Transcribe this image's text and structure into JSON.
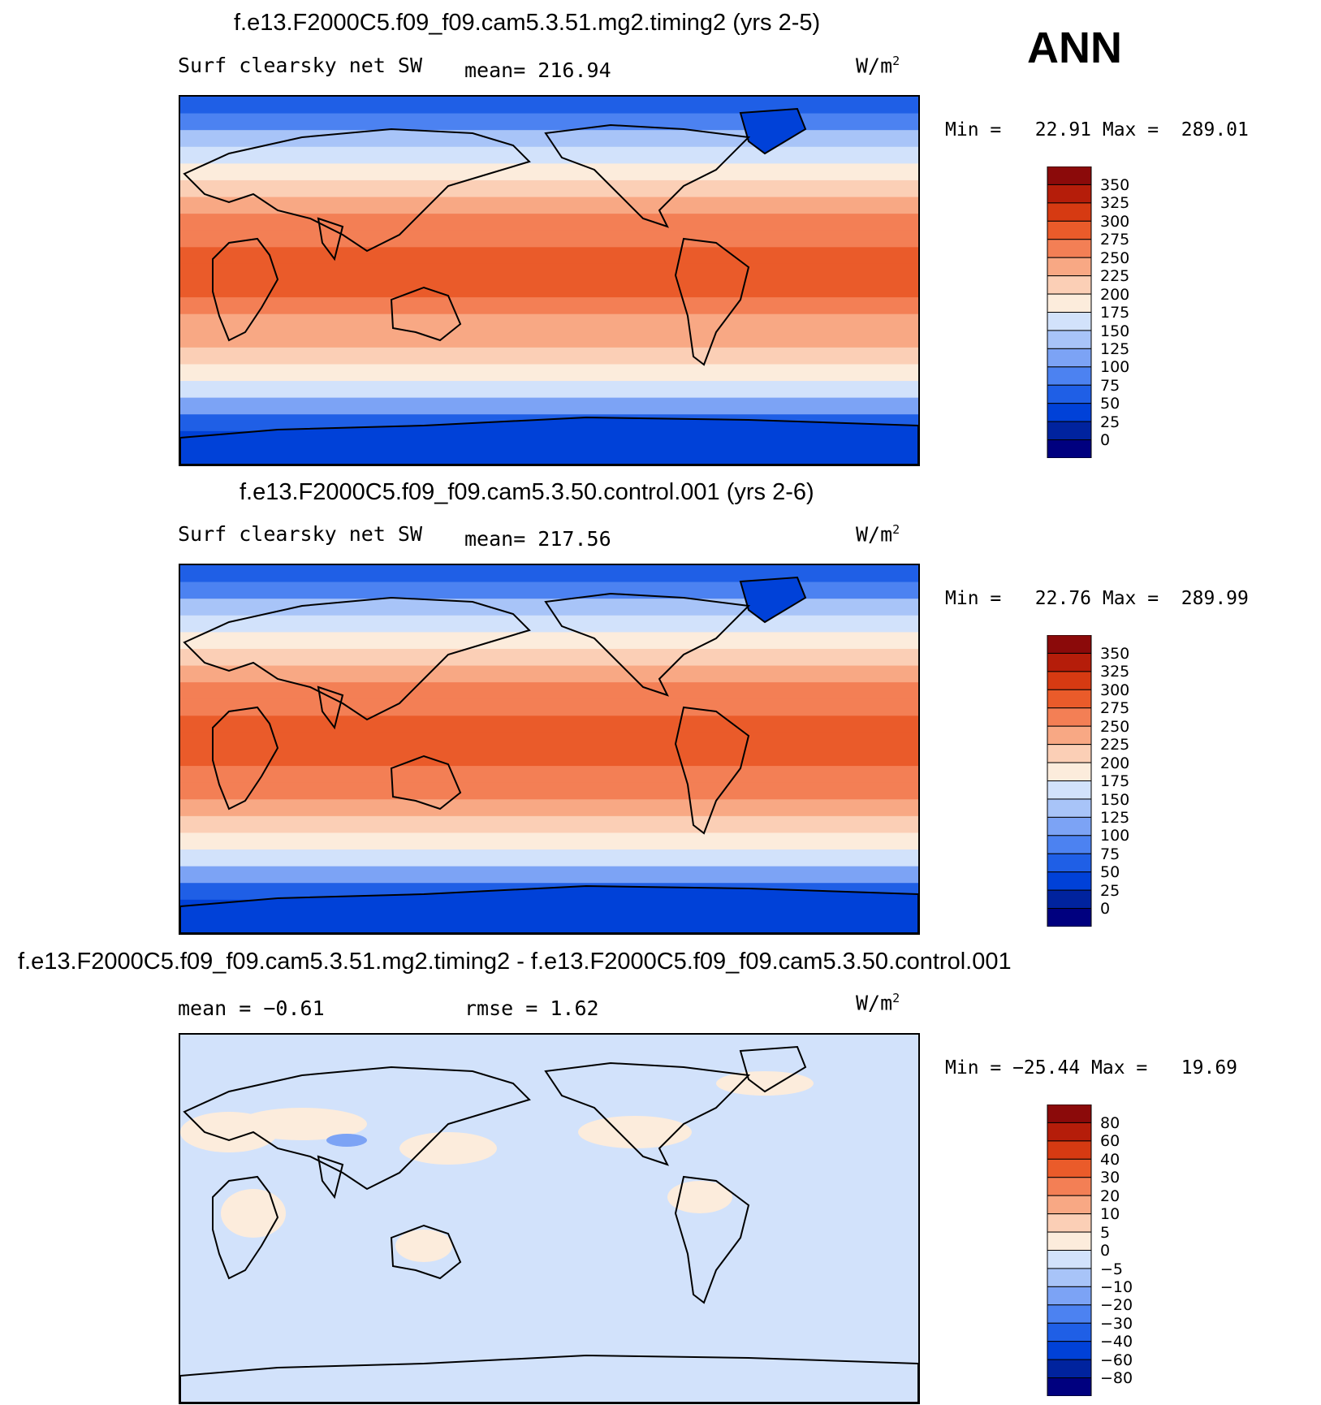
{
  "season": "ANN",
  "colors": {
    "abs_scale": [
      "#00007f",
      "#00239e",
      "#0041d8",
      "#1f5fe6",
      "#4c82f1",
      "#7ca3f5",
      "#a8c4f8",
      "#d2e2fb",
      "#fcecdc",
      "#fbcfb6",
      "#f8a884",
      "#f37f55",
      "#ea5b2a",
      "#d63a12",
      "#b51d0a",
      "#8b0a0a"
    ],
    "diff_scale": [
      "#00007f",
      "#00239e",
      "#0041d8",
      "#1f5fe6",
      "#4c82f1",
      "#7ca3f5",
      "#a8c4f8",
      "#d2e2fb",
      "#fcecdc",
      "#fbcfb6",
      "#f8a884",
      "#f37f55",
      "#ea5b2a",
      "#d63a12",
      "#b51d0a",
      "#8b0a0a"
    ],
    "coast": "#000000"
  },
  "chart_data": [
    {
      "type": "heatmap",
      "title": "f.e13.F2000C5.f09_f09.cam5.3.51.mg2.timing2 (yrs 2-5)",
      "variable": "Surf clearsky net SW",
      "stat_text": "mean= 216.94",
      "units_text": "W/m",
      "units_sup": "2",
      "minmax_text": "Min =   22.91 Max =  289.01",
      "min": 22.91,
      "max": 289.01,
      "mean": 216.94,
      "colorbar_levels": [
        "350",
        "325",
        "300",
        "275",
        "250",
        "225",
        "200",
        "175",
        "150",
        "125",
        "100",
        "75",
        "50",
        "25",
        "0"
      ],
      "zonal_profile": [
        60,
        90,
        130,
        165,
        190,
        210,
        230,
        250,
        268,
        282,
        286,
        282,
        266,
        248,
        228,
        205,
        180,
        150,
        110,
        70,
        40,
        30
      ]
    },
    {
      "type": "heatmap",
      "title": "f.e13.F2000C5.f09_f09.cam5.3.50.control.001 (yrs 2-6)",
      "variable": "Surf clearsky net SW",
      "stat_text": "mean= 217.56",
      "units_text": "W/m",
      "units_sup": "2",
      "minmax_text": "Min =   22.76 Max =  289.99",
      "min": 22.76,
      "max": 289.99,
      "mean": 217.56,
      "colorbar_levels": [
        "350",
        "325",
        "300",
        "275",
        "250",
        "225",
        "200",
        "175",
        "150",
        "125",
        "100",
        "75",
        "50",
        "25",
        "0"
      ],
      "zonal_profile": [
        60,
        90,
        130,
        165,
        192,
        212,
        232,
        252,
        270,
        284,
        288,
        284,
        268,
        250,
        230,
        206,
        182,
        152,
        112,
        72,
        40,
        30
      ]
    },
    {
      "type": "heatmap",
      "title": "f.e13.F2000C5.f09_f09.cam5.3.51.mg2.timing2 - f.e13.F2000C5.f09_f09.cam5.3.50.control.001",
      "stat_left_text": "mean =   −0.61",
      "stat_right_text": "rmse =    1.62",
      "units_text": "W/m",
      "units_sup": "2",
      "minmax_text": "Min = −25.44 Max =   19.69",
      "min": -25.44,
      "max": 19.69,
      "mean": -0.61,
      "rmse": 1.62,
      "colorbar_levels": [
        "80",
        "60",
        "40",
        "30",
        "20",
        "10",
        "5",
        "0",
        "−5",
        "−10",
        "−20",
        "−30",
        "−40",
        "−60",
        "−80"
      ]
    }
  ]
}
